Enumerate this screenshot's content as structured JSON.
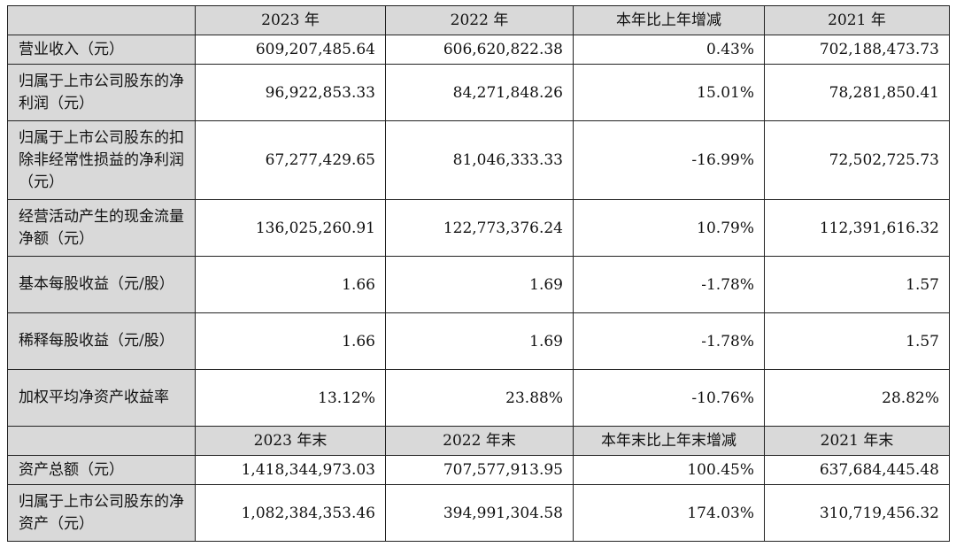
{
  "header_top": [
    "",
    "2023 年",
    "2022 年",
    "本年比上年增减",
    "2021 年"
  ],
  "rows_top": [
    {
      "label": "营业收入（元）",
      "values": [
        "609,207,485.64",
        "606,620,822.38",
        "0.43%",
        "702,188,473.73"
      ]
    },
    {
      "label": "归属于上市公司股东的净利润（元）",
      "values": [
        "96,922,853.33",
        "84,271,848.26",
        "15.01%",
        "78,281,850.41"
      ]
    },
    {
      "label": "归属于上市公司股东的扣除非经常性损益的净利润（元）",
      "values": [
        "67,277,429.65",
        "81,046,333.33",
        "-16.99%",
        "72,502,725.73"
      ]
    },
    {
      "label": "经营活动产生的现金流量净额（元）",
      "values": [
        "136,025,260.91",
        "122,773,376.24",
        "10.79%",
        "112,391,616.32"
      ]
    },
    {
      "label": "基本每股收益（元/股）",
      "values": [
        "1.66",
        "1.69",
        "-1.78%",
        "1.57"
      ]
    },
    {
      "label": "稀释每股收益（元/股）",
      "values": [
        "1.66",
        "1.69",
        "-1.78%",
        "1.57"
      ]
    },
    {
      "label": "加权平均净资产收益率",
      "values": [
        "13.12%",
        "23.88%",
        "-10.76%",
        "28.82%"
      ]
    }
  ],
  "header_bottom": [
    "",
    "2023 年末",
    "2022 年末",
    "本年末比上年末增减",
    "2021 年末"
  ],
  "rows_bottom": [
    {
      "label": "资产总额（元）",
      "values": [
        "1,418,344,973.03",
        "707,577,913.95",
        "100.45%",
        "637,684,445.48"
      ]
    },
    {
      "label": "归属于上市公司股东的净资产（元）",
      "values": [
        "1,082,384,353.46",
        "394,991,304.58",
        "174.03%",
        "310,719,456.32"
      ]
    }
  ]
}
